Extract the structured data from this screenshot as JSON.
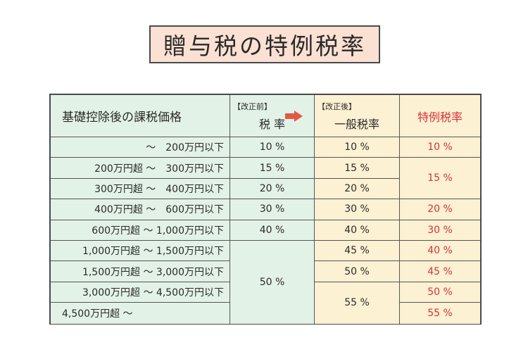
{
  "title": "贈与税の特例税率",
  "headers": {
    "col1": "基礎控除後の課税価格",
    "col2_tag": "【改正前】",
    "col2": "税 率",
    "col3_tag": "【改正後】",
    "col3": "一般税率",
    "col4": "特例税率"
  },
  "rows": [
    {
      "range": "〜　200万円以下",
      "before": "10 %",
      "general": "10 %",
      "special": "10 %"
    },
    {
      "range": "200万円超 〜　300万円以下",
      "before": "15 %",
      "general": "15 %",
      "special": "15 %"
    },
    {
      "range": "300万円超 〜　400万円以下",
      "before": "20 %",
      "general": "20 %",
      "special": ""
    },
    {
      "range": "400万円超 〜　600万円以下",
      "before": "30 %",
      "general": "30 %",
      "special": "20 %"
    },
    {
      "range": "600万円超 〜 1,000万円以下",
      "before": "40 %",
      "general": "40 %",
      "special": "30 %"
    },
    {
      "range": "1,000万円超 〜 1,500万円以下",
      "before": "50 %",
      "general": "45 %",
      "special": "40 %"
    },
    {
      "range": "1,500万円超 〜 3,000万円以下",
      "before": "",
      "general": "50 %",
      "special": "45 %"
    },
    {
      "range": "3,000万円超 〜 4,500万円以下",
      "before": "",
      "general": "55 %",
      "special": "50 %"
    },
    {
      "range": "4,500万円超 〜",
      "before": "",
      "general": "",
      "special": "55 %"
    }
  ],
  "colors": {
    "title_bg": "#fbe1d3",
    "before_bg": "#e3f2e6",
    "after_bg": "#fdf1d3",
    "special_text": "#d2343a",
    "arrow": "#e25a45"
  }
}
